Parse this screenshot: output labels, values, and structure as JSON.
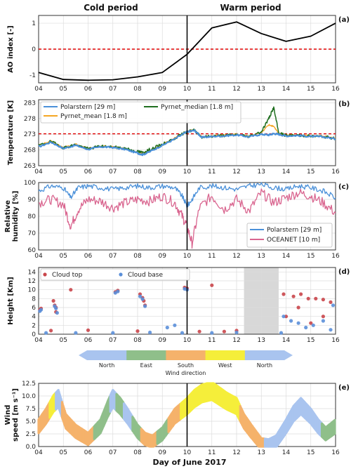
{
  "headers": {
    "left": "Cold period",
    "right": "Warm period"
  },
  "xaxis": {
    "ticks": [
      "04",
      "05",
      "06",
      "07",
      "08",
      "09",
      "10",
      "11",
      "12",
      "13",
      "14",
      "15",
      "16"
    ],
    "label": "Day of June 2017",
    "range": [
      4,
      16
    ],
    "divider": 10
  },
  "colors": {
    "ao": "#000000",
    "zero": "#e00000",
    "polarstern": "#4a90d9",
    "pyrnet_mean": "#f5a623",
    "pyrnet_median": "#1f6e1f",
    "oceanet": "#d9658f",
    "cloud_top": "#c9454a",
    "cloud_base": "#5b8fd9",
    "shade": "#d8d8d8",
    "north": "#a9c4ef",
    "east": "#8fbf8a",
    "south": "#f5b26b",
    "west": "#f5ee3a"
  },
  "chart_data": [
    {
      "type": "line",
      "panel": "(a)",
      "ylabel": "AO index [-]",
      "ylim": [
        -1.3,
        1.3
      ],
      "yticks": [
        "1",
        "0",
        "-1"
      ],
      "yticks_values": [
        1,
        0,
        -1
      ],
      "reference_line": 0,
      "x": [
        4,
        5,
        6,
        7,
        8,
        9,
        10,
        11,
        12,
        13,
        14,
        15,
        16
      ],
      "series": [
        {
          "values": [
            -0.9,
            -1.17,
            -1.2,
            -1.18,
            -1.07,
            -0.9,
            -0.2,
            0.82,
            1.05,
            0.6,
            0.3,
            0.5,
            1.0
          ]
        }
      ]
    },
    {
      "type": "line",
      "panel": "(b)",
      "ylabel": "Temperature [K]",
      "ylim": [
        263,
        284
      ],
      "yticks": [
        "283",
        "278",
        "273",
        "268",
        "263"
      ],
      "yticks_values": [
        283,
        278,
        273,
        268,
        263
      ],
      "reference_line": 273.15,
      "x": [
        4,
        4.5,
        5,
        5.5,
        6,
        6.5,
        7,
        7.5,
        8,
        8.2,
        8.5,
        9,
        9.5,
        10,
        10.3,
        10.6,
        11,
        11.5,
        12,
        12.5,
        13,
        13.3,
        13.5,
        13.7,
        14,
        14.5,
        15,
        15.5,
        16
      ],
      "series": [
        {
          "name": "Polarstern [29 m]",
          "values": [
            269,
            270.5,
            268.5,
            269.5,
            268.2,
            269,
            268.8,
            268.2,
            267,
            266.5,
            267.5,
            269.5,
            271.5,
            273.8,
            274.2,
            272,
            272.3,
            272.5,
            272.8,
            272.2,
            273,
            272.8,
            273.2,
            273,
            272.5,
            272.6,
            272.3,
            272.2,
            271.5
          ]
        },
        {
          "name": "Pyrnet_mean [1.8 m]",
          "values": [
            269.5,
            270.8,
            268.8,
            269.8,
            268.5,
            269.3,
            269,
            268.5,
            267.3,
            266.8,
            267.8,
            269.8,
            271.8,
            274,
            274.4,
            272.2,
            272.5,
            272.7,
            273,
            272.4,
            273.5,
            276,
            275.5,
            273.2,
            272.7,
            272.8,
            272.5,
            272.4,
            271.7
          ]
        },
        {
          "name": "Pyrnet_median [1.8 m]",
          "values": [
            269.4,
            270.7,
            268.7,
            269.7,
            268.4,
            269.2,
            268.9,
            268.6,
            267.5,
            267.2,
            268.2,
            269.8,
            271.7,
            273.9,
            274.3,
            272.1,
            272.4,
            272.6,
            272.9,
            272.3,
            273.8,
            278,
            281.5,
            273.5,
            272.6,
            272.7,
            272.4,
            272.3,
            271.6
          ]
        }
      ]
    },
    {
      "type": "line",
      "panel": "(c)",
      "ylabel": "Relative humidity [%]",
      "ylim": [
        60,
        100
      ],
      "yticks": [
        "100",
        "90",
        "80",
        "70",
        "60"
      ],
      "yticks_values": [
        100,
        90,
        80,
        70,
        60
      ],
      "x": [
        4,
        4.5,
        5,
        5.3,
        5.6,
        6,
        6.5,
        7,
        7.5,
        8,
        8.5,
        9,
        9.5,
        9.8,
        10,
        10.2,
        10.5,
        11,
        11.5,
        12,
        12.5,
        13,
        13.5,
        14,
        14.5,
        15,
        15.5,
        16
      ],
      "series": [
        {
          "name": "Polarstern [29 m]",
          "values": [
            95,
            98,
            97,
            91,
            97,
            98,
            97,
            96,
            97,
            98,
            97,
            98,
            97,
            92,
            86,
            90,
            97,
            98,
            97,
            96,
            98,
            99,
            97,
            96,
            98,
            97,
            95,
            91
          ]
        },
        {
          "name": "OCEANET [10 m]",
          "values": [
            88,
            90,
            87,
            74,
            84,
            90,
            89,
            85,
            88,
            90,
            89,
            92,
            88,
            80,
            74,
            64,
            85,
            92,
            84,
            90,
            83,
            94,
            88,
            91,
            94,
            92,
            88,
            82
          ]
        }
      ]
    },
    {
      "type": "scatter",
      "panel": "(d)",
      "ylabel": "Height [Km]",
      "ylim": [
        0,
        15
      ],
      "yticks": [
        "14",
        "12",
        "10",
        "8",
        "6",
        "4",
        "2",
        "0"
      ],
      "yticks_values": [
        14,
        12,
        10,
        8,
        6,
        4,
        2,
        0
      ],
      "shaded_range": [
        12.3,
        13.7
      ],
      "series": [
        {
          "name": "Cloud top",
          "points": [
            [
              4.05,
              5.5
            ],
            [
              4.1,
              5.8
            ],
            [
              4.6,
              7.5
            ],
            [
              4.65,
              6.5
            ],
            [
              4.7,
              6
            ],
            [
              4.7,
              5
            ],
            [
              5.3,
              10
            ],
            [
              7.1,
              9.5
            ],
            [
              7.2,
              9.8
            ],
            [
              8.1,
              9
            ],
            [
              8.2,
              8.2
            ],
            [
              8.25,
              7.5
            ],
            [
              8.3,
              6.5
            ],
            [
              9.9,
              10.5
            ],
            [
              10,
              10.3
            ],
            [
              11,
              11
            ],
            [
              13.9,
              9
            ],
            [
              14.3,
              8.5
            ],
            [
              14.6,
              9
            ],
            [
              14.9,
              8
            ],
            [
              15.2,
              8
            ],
            [
              15.5,
              7.8
            ],
            [
              15.8,
              7.2
            ],
            [
              4.5,
              0.8
            ],
            [
              6,
              0.9
            ],
            [
              8,
              0.7
            ],
            [
              10.5,
              0.6
            ],
            [
              11.5,
              0.6
            ],
            [
              12,
              0.8
            ],
            [
              14,
              4
            ],
            [
              14.5,
              6
            ],
            [
              15,
              2.5
            ],
            [
              15.5,
              4
            ]
          ]
        },
        {
          "name": "Cloud base",
          "points": [
            [
              4.05,
              5.2
            ],
            [
              4.1,
              5.5
            ],
            [
              4.65,
              6.3
            ],
            [
              4.7,
              5.8
            ],
            [
              4.75,
              4.8
            ],
            [
              7.1,
              9.3
            ],
            [
              7.2,
              9.6
            ],
            [
              8.1,
              8.5
            ],
            [
              8.2,
              7.9
            ],
            [
              8.3,
              6.3
            ],
            [
              9.9,
              10.2
            ],
            [
              10,
              10
            ],
            [
              13.9,
              4
            ],
            [
              14.2,
              3
            ],
            [
              14.5,
              2.5
            ],
            [
              14.8,
              1.5
            ],
            [
              15.1,
              2
            ],
            [
              15.5,
              3
            ],
            [
              15.8,
              1
            ],
            [
              4.3,
              0.3
            ],
            [
              5.5,
              0.3
            ],
            [
              7,
              0.3
            ],
            [
              8.5,
              0.4
            ],
            [
              9.2,
              1.5
            ],
            [
              9.5,
              2
            ],
            [
              9.8,
              0.3
            ],
            [
              11,
              0.3
            ],
            [
              12,
              0.4
            ],
            [
              13.8,
              0.3
            ],
            [
              15.9,
              6.5
            ]
          ]
        }
      ]
    },
    {
      "type": "bar",
      "panel": "wind-direction-colorbar",
      "categories": [
        "North",
        "East",
        "South",
        "West",
        "North"
      ],
      "label": "Wind direction"
    },
    {
      "type": "scatter",
      "panel": "(e)",
      "ylabel": "Wind speed [m s⁻¹]",
      "ylim": [
        0,
        12.5
      ],
      "yticks": [
        "12.5",
        "10.0",
        "7.5",
        "5.0",
        "2.5",
        "0.0"
      ],
      "yticks_values": [
        12.5,
        10,
        7.5,
        5,
        2.5,
        0
      ],
      "x": [
        4,
        4.3,
        4.6,
        4.8,
        5.1,
        5.5,
        6,
        6.5,
        6.8,
        7,
        7.3,
        7.6,
        8,
        8.3,
        8.6,
        9,
        9.5,
        10,
        10.3,
        10.6,
        11,
        11.3,
        11.6,
        12,
        12.3,
        12.6,
        13,
        13.3,
        13.6,
        14,
        14.3,
        14.6,
        15,
        15.3,
        15.6,
        16
      ],
      "series": [
        {
          "values": [
            4,
            6,
            8.5,
            9.5,
            5,
            3,
            1.5,
            4,
            7.5,
            9.5,
            8,
            6,
            3,
            1.5,
            1,
            2.5,
            6,
            8,
            9.5,
            10.5,
            11,
            10,
            9,
            8,
            5,
            3,
            0.5,
            0.3,
            1,
            4,
            6.5,
            8,
            6,
            4,
            2.5,
            4
          ]
        }
      ],
      "direction_per_point": [
        "south",
        "south",
        "west",
        "north",
        "south",
        "south",
        "south",
        "east",
        "east",
        "north",
        "east",
        "north",
        "east",
        "south",
        "south",
        "east",
        "south",
        "west",
        "west",
        "west",
        "west",
        "west",
        "west",
        "west",
        "south",
        "south",
        "south",
        "north",
        "north",
        "north",
        "north",
        "north",
        "north",
        "north",
        "east",
        "east"
      ]
    }
  ],
  "panel_labels": [
    "(a)",
    "(b)",
    "(c)",
    "(d)",
    "(e)"
  ]
}
